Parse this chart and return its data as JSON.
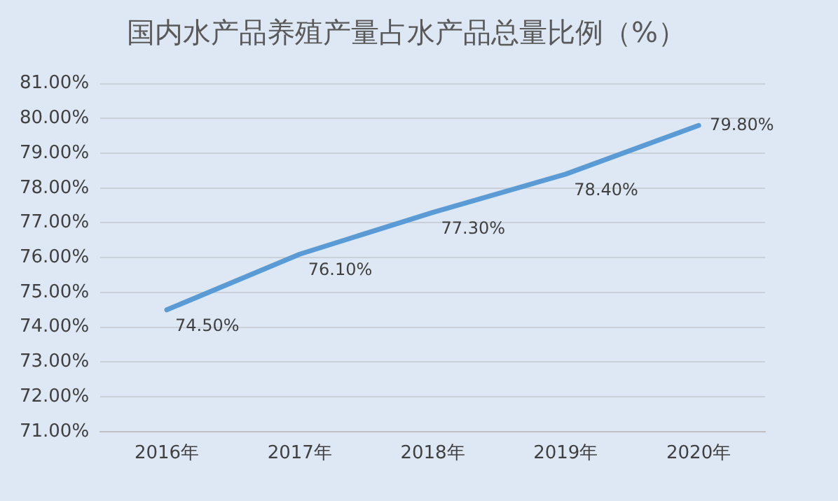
{
  "chart_data": {
    "type": "line",
    "title": "国内水产品养殖产量占水产品总量比例（%）",
    "categories": [
      "2016年",
      "2017年",
      "2018年",
      "2019年",
      "2020年"
    ],
    "series": [
      {
        "color": "#5b9bd5",
        "values": [
          74.5,
          76.1,
          77.3,
          78.4,
          79.8
        ],
        "value_labels": [
          "74.50%",
          "76.10%",
          "77.30%",
          "78.40%",
          "79.80%"
        ]
      }
    ],
    "ylim": [
      71,
      81
    ],
    "yticks": [
      {
        "value": 71,
        "label": "71.00%"
      },
      {
        "value": 72,
        "label": "72.00%"
      },
      {
        "value": 73,
        "label": "73.00%"
      },
      {
        "value": 74,
        "label": "74.00%"
      },
      {
        "value": 75,
        "label": "75.00%"
      },
      {
        "value": 76,
        "label": "76.00%"
      },
      {
        "value": 77,
        "label": "77.00%"
      },
      {
        "value": 78,
        "label": "78.00%"
      },
      {
        "value": 79,
        "label": "79.00%"
      },
      {
        "value": 80,
        "label": "80.00%"
      },
      {
        "value": 81,
        "label": "81.00%"
      }
    ],
    "grid": "y",
    "legend": false,
    "marker": "none",
    "line_style": "solid"
  }
}
